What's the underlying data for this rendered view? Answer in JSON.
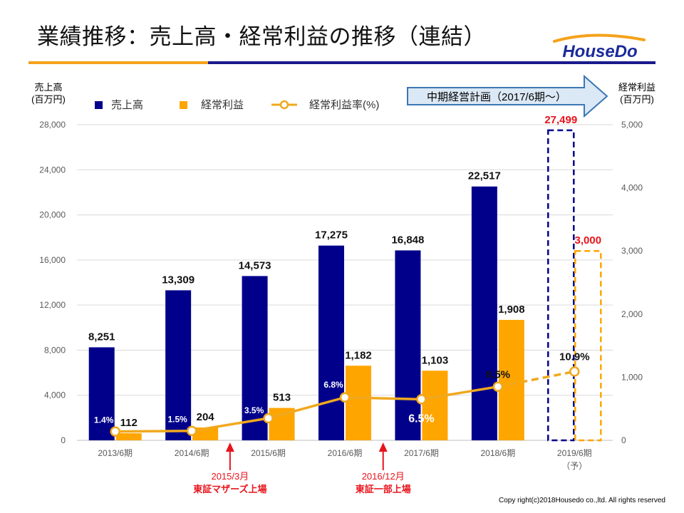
{
  "title": "業績推移：売上高・経常利益の推移（連結）",
  "logo_text": "HouseDo",
  "copyright": "Copy right(c)2018Housedo co.,ltd. All rights reserved",
  "colors": {
    "navy": "#00008b",
    "orange": "#ffa500",
    "red": "#e8141c",
    "line": "#f0a81e",
    "arrow_fill": "#dbe8f5",
    "arrow_stroke": "#3c78b4"
  },
  "plan_arrow_label": "中期経営計画（2017/6期～）",
  "annotations": [
    {
      "after_category": 1,
      "lines": [
        "2015/3月",
        "東証マザーズ上場"
      ]
    },
    {
      "after_category": 3,
      "lines": [
        "2016/12月",
        "東証一部上場"
      ]
    }
  ],
  "chart_data": {
    "type": "bar",
    "categories": [
      "2013/6期",
      "2014/6期",
      "2015/6期",
      "2016/6期",
      "2017/6期",
      "2018/6期",
      "2019/6期"
    ],
    "category_sublabels": [
      "",
      "",
      "",
      "",
      "",
      "",
      "（予）"
    ],
    "forecast_index": 6,
    "series": [
      {
        "name": "売上高",
        "axis": "left",
        "values": [
          8251,
          13309,
          14573,
          17275,
          16848,
          22517,
          27499
        ],
        "labels": [
          "8,251",
          "13,309",
          "14,573",
          "17,275",
          "16,848",
          "22,517",
          "27,499"
        ]
      },
      {
        "name": "経常利益",
        "axis": "right",
        "values": [
          112,
          204,
          513,
          1182,
          1103,
          1908,
          3000
        ],
        "labels": [
          "112",
          "204",
          "513",
          "1,182",
          "1,103",
          "1,908",
          "3,000"
        ]
      },
      {
        "name": "経常利益率(%)",
        "axis": "right",
        "type": "line",
        "values": [
          1.4,
          1.5,
          3.5,
          6.8,
          6.5,
          8.5,
          10.9
        ],
        "labels": [
          "1.4%",
          "1.5%",
          "3.5%",
          "6.8%",
          "6.5%",
          "8.5%",
          "10.9%"
        ]
      }
    ],
    "left_axis": {
      "label_lines": [
        "売上高",
        "(百万円)"
      ],
      "ylim": [
        0,
        28000
      ],
      "ticks": [
        "0",
        "4,000",
        "8,000",
        "12,000",
        "16,000",
        "20,000",
        "24,000",
        "28,000"
      ]
    },
    "right_axis": {
      "label_lines": [
        "経常利益",
        "(百万円)"
      ],
      "ylim": [
        0,
        5000
      ],
      "ticks": [
        "0",
        "1,000",
        "2,000",
        "3,000",
        "4,000",
        "5,000"
      ]
    },
    "legend": {
      "position": "top"
    },
    "grid": true
  }
}
